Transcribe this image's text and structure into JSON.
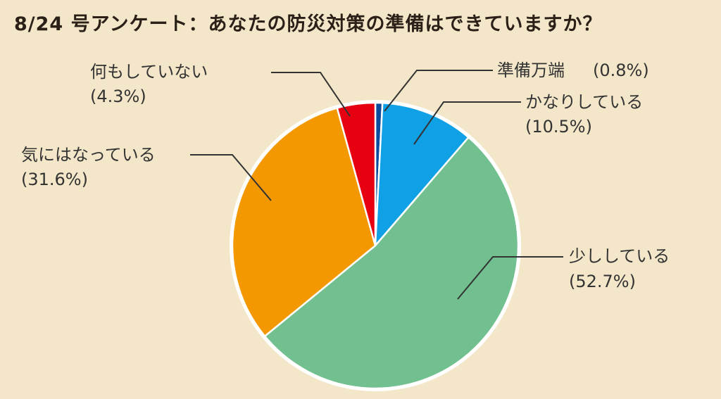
{
  "title": "8/24 号アンケート：あなたの防災対策の準備はできていますか？",
  "chart_data": {
    "type": "pie",
    "title": "8/24 号アンケート：あなたの防災対策の準備はできていますか？",
    "start": "top",
    "direction": "clockwise",
    "slices": [
      {
        "label": "準備万端",
        "value": 0.8,
        "value_label": "(0.8%)",
        "color": "#0d4c9c"
      },
      {
        "label": "かなりしている",
        "value": 10.5,
        "value_label": "(10.5%)",
        "color": "#0fa0e6"
      },
      {
        "label": "少ししている",
        "value": 52.7,
        "value_label": "(52.7%)",
        "color": "#72c08f"
      },
      {
        "label": "気にはなっている",
        "value": 31.6,
        "value_label": "(31.6%)",
        "color": "#f39800"
      },
      {
        "label": "何もしていない",
        "value": 4.3,
        "value_label": "(4.3%)",
        "color": "#e60012"
      }
    ]
  }
}
